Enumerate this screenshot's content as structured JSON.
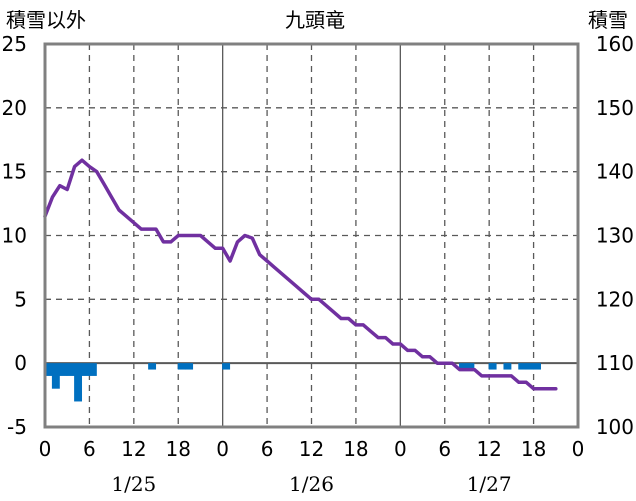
{
  "chart_data": {
    "type": "line",
    "title": "九頭竜",
    "left_axis_label": "積雪以外",
    "right_axis_label": "積雪",
    "left_axis": {
      "ylim": [
        -5,
        25
      ],
      "ticks": [
        25,
        20,
        15,
        10,
        5,
        0,
        -5
      ]
    },
    "right_axis": {
      "ylim": [
        100,
        160
      ],
      "ticks": [
        160,
        150,
        140,
        130,
        120,
        110,
        100
      ]
    },
    "x_axis": {
      "xlim": [
        0,
        72
      ],
      "ticks": [
        {
          "x": 0,
          "label": "0"
        },
        {
          "x": 6,
          "label": "6"
        },
        {
          "x": 12,
          "label": "12"
        },
        {
          "x": 18,
          "label": "18"
        },
        {
          "x": 24,
          "label": "0"
        },
        {
          "x": 30,
          "label": "6"
        },
        {
          "x": 36,
          "label": "12"
        },
        {
          "x": 42,
          "label": "18"
        },
        {
          "x": 48,
          "label": "0"
        },
        {
          "x": 54,
          "label": "6"
        },
        {
          "x": 60,
          "label": "12"
        },
        {
          "x": 66,
          "label": "18"
        },
        {
          "x": 72,
          "label": "0"
        }
      ],
      "date_labels": [
        {
          "x": 12,
          "label": "1/25"
        },
        {
          "x": 36,
          "label": "1/26"
        },
        {
          "x": 60,
          "label": "1/27"
        }
      ]
    },
    "grid": {
      "dashed_x_every": 6,
      "dashed_y_left_every": 5,
      "solid_day_dividers": true,
      "zero_line": true
    },
    "colors": {
      "snow_depth_line": "#7030a0",
      "bars": "#0070c0",
      "grid": "#595959",
      "frame": "#808080"
    },
    "series": [
      {
        "name": "積雪",
        "axis": "right",
        "type": "line",
        "points": [
          [
            0,
            133
          ],
          [
            1,
            136
          ],
          [
            2,
            137.8
          ],
          [
            3,
            137.2
          ],
          [
            4,
            140.8
          ],
          [
            5,
            141.8
          ],
          [
            6,
            140.8
          ],
          [
            7,
            140
          ],
          [
            8,
            138
          ],
          [
            9,
            136
          ],
          [
            10,
            134
          ],
          [
            11,
            133
          ],
          [
            12,
            132
          ],
          [
            13,
            131
          ],
          [
            14,
            131
          ],
          [
            15,
            131
          ],
          [
            16,
            129
          ],
          [
            17,
            129
          ],
          [
            18,
            130
          ],
          [
            19,
            130
          ],
          [
            20,
            130
          ],
          [
            21,
            130
          ],
          [
            22,
            129
          ],
          [
            23,
            128
          ],
          [
            24,
            128
          ],
          [
            25,
            126
          ],
          [
            26,
            129
          ],
          [
            27,
            130
          ],
          [
            28,
            129.6
          ],
          [
            29,
            127
          ],
          [
            30,
            126
          ],
          [
            31,
            125
          ],
          [
            32,
            124
          ],
          [
            33,
            123
          ],
          [
            34,
            122
          ],
          [
            35,
            121
          ],
          [
            36,
            120
          ],
          [
            37,
            120
          ],
          [
            38,
            119
          ],
          [
            39,
            118
          ],
          [
            40,
            117
          ],
          [
            41,
            117
          ],
          [
            42,
            116
          ],
          [
            43,
            116
          ],
          [
            44,
            115
          ],
          [
            45,
            114
          ],
          [
            46,
            114
          ],
          [
            47,
            113
          ],
          [
            48,
            113
          ],
          [
            49,
            112
          ],
          [
            50,
            112
          ],
          [
            51,
            111
          ],
          [
            52,
            111
          ],
          [
            53,
            110
          ],
          [
            54,
            110
          ],
          [
            55,
            110
          ],
          [
            56,
            109
          ],
          [
            57,
            109
          ],
          [
            58,
            109
          ],
          [
            59,
            108
          ],
          [
            60,
            108
          ],
          [
            61,
            108
          ],
          [
            62,
            108
          ],
          [
            63,
            108
          ],
          [
            64,
            107
          ],
          [
            65,
            107
          ],
          [
            66,
            106
          ],
          [
            67,
            106
          ],
          [
            68,
            106
          ],
          [
            69,
            106
          ]
        ]
      },
      {
        "name": "積雪以外",
        "axis": "left",
        "type": "bar",
        "points": [
          [
            0,
            -1
          ],
          [
            1,
            -2
          ],
          [
            2,
            -1
          ],
          [
            3,
            -1
          ],
          [
            4,
            -3
          ],
          [
            5,
            -1
          ],
          [
            6,
            -1
          ],
          [
            14,
            -0.5
          ],
          [
            18,
            -0.5
          ],
          [
            19,
            -0.5
          ],
          [
            24,
            -0.5
          ],
          [
            56,
            -0.5
          ],
          [
            57,
            -0.5
          ],
          [
            60,
            -0.5
          ],
          [
            62,
            -0.5
          ],
          [
            64,
            -0.5
          ],
          [
            65,
            -0.5
          ],
          [
            66,
            -0.5
          ]
        ]
      }
    ]
  }
}
